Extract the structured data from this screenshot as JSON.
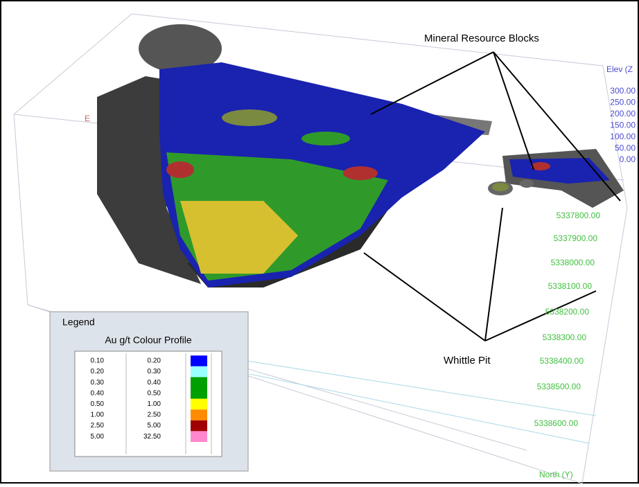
{
  "annotations": {
    "mineral_resource_blocks": "Mineral Resource Blocks",
    "whittle_pit": "Whittle Pit"
  },
  "axes": {
    "elev_title": "Elev (Z",
    "elev_ticks": [
      "300.00",
      "250.00",
      "200.00",
      "150.00",
      "100.00",
      "50.00",
      "0.00"
    ],
    "east_label": "E",
    "north_ticks": [
      "5337800.00",
      "5337900.00",
      "5338000.00",
      "5338100.00",
      "5338200.00",
      "5338300.00",
      "5338400.00",
      "5338500.00",
      "5338600.00"
    ],
    "north_title": "North (Y)"
  },
  "legend": {
    "title": "Legend",
    "subtitle": "Au g/t Colour Profile",
    "rows": [
      {
        "from": "0.10",
        "to": "0.20",
        "color": "#0000ff"
      },
      {
        "from": "0.20",
        "to": "0.30",
        "color": "#99ffff"
      },
      {
        "from": "0.30",
        "to": "0.40",
        "color": "#00a000"
      },
      {
        "from": "0.40",
        "to": "0.50",
        "color": "#00a000"
      },
      {
        "from": "0.50",
        "to": "1.00",
        "color": "#ffff00"
      },
      {
        "from": "1.00",
        "to": "2.50",
        "color": "#ff8c00"
      },
      {
        "from": "2.50",
        "to": "5.00",
        "color": "#a00000"
      },
      {
        "from": "5.00",
        "to": "32.50",
        "color": "#ff88cc"
      }
    ]
  }
}
